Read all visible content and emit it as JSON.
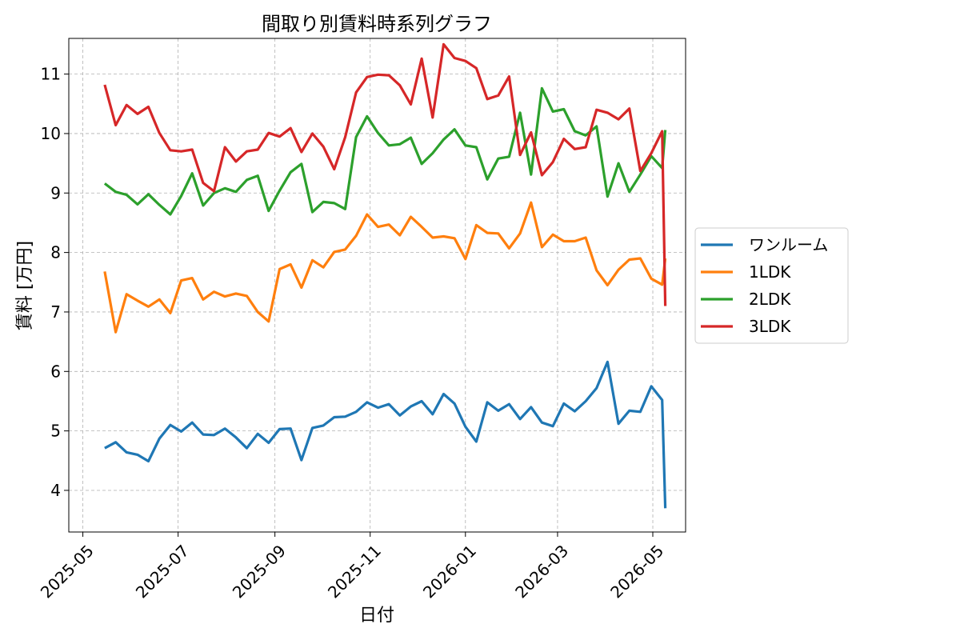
{
  "chart_data": {
    "type": "line",
    "title": "間取り別賃料時系列グラフ",
    "xlabel": "日付",
    "ylabel": "賃料 [万円]",
    "x_tick_labels": [
      "2025-05",
      "2025-07",
      "2025-09",
      "2025-11",
      "2026-01",
      "2026-03",
      "2026-05"
    ],
    "y_tick_labels": [
      "4",
      "5",
      "6",
      "7",
      "8",
      "9",
      "10",
      "11"
    ],
    "ylim": [
      3.3,
      11.6
    ],
    "grid": true,
    "legend_position": "outside-right",
    "x": [
      "2025-05-15",
      "2025-05-22",
      "2025-05-29",
      "2025-06-05",
      "2025-06-12",
      "2025-06-19",
      "2025-06-26",
      "2025-07-03",
      "2025-07-10",
      "2025-07-17",
      "2025-07-24",
      "2025-07-31",
      "2025-08-07",
      "2025-08-14",
      "2025-08-21",
      "2025-08-28",
      "2025-09-04",
      "2025-09-11",
      "2025-09-18",
      "2025-09-25",
      "2025-10-02",
      "2025-10-09",
      "2025-10-16",
      "2025-10-23",
      "2025-10-30",
      "2025-11-06",
      "2025-11-13",
      "2025-11-20",
      "2025-11-27",
      "2025-12-04",
      "2025-12-11",
      "2025-12-18",
      "2025-12-25",
      "2026-01-01",
      "2026-01-08",
      "2026-01-15",
      "2026-01-22",
      "2026-01-29",
      "2026-02-05",
      "2026-02-12",
      "2026-02-19",
      "2026-02-26",
      "2026-03-05",
      "2026-03-12",
      "2026-03-19",
      "2026-03-26",
      "2026-04-02",
      "2026-04-09",
      "2026-04-16",
      "2026-04-23",
      "2026-04-30",
      "2026-05-07",
      "2026-05-09"
    ],
    "series": [
      {
        "name": "ワンルーム",
        "color": "#1f77b4",
        "values": [
          4.71,
          4.81,
          4.64,
          4.6,
          4.49,
          4.87,
          5.1,
          4.99,
          5.14,
          4.94,
          4.93,
          5.04,
          4.89,
          4.71,
          4.95,
          4.8,
          5.03,
          5.04,
          4.51,
          5.05,
          5.09,
          5.23,
          5.24,
          5.32,
          5.48,
          5.39,
          5.45,
          5.26,
          5.41,
          5.5,
          5.28,
          5.62,
          5.46,
          5.07,
          4.82,
          5.48,
          5.34,
          5.45,
          5.2,
          5.4,
          5.14,
          5.08,
          5.46,
          5.33,
          5.5,
          5.72,
          6.16,
          5.12,
          5.34,
          5.32,
          5.75,
          5.52,
          3.7
        ]
      },
      {
        "name": "1LDK",
        "color": "#ff7f0e",
        "values": [
          7.68,
          6.66,
          7.3,
          7.19,
          7.09,
          7.21,
          6.98,
          7.53,
          7.57,
          7.21,
          7.34,
          7.26,
          7.31,
          7.27,
          7.0,
          6.84,
          7.72,
          7.8,
          7.41,
          7.87,
          7.75,
          8.01,
          8.05,
          8.28,
          8.64,
          8.43,
          8.47,
          8.29,
          8.6,
          8.43,
          8.25,
          8.27,
          8.24,
          7.89,
          8.46,
          8.33,
          8.32,
          8.07,
          8.32,
          8.84,
          8.09,
          8.3,
          8.19,
          8.19,
          8.25,
          7.7,
          7.45,
          7.71,
          7.88,
          7.9,
          7.56,
          7.46,
          7.9
        ]
      },
      {
        "name": "2LDK",
        "color": "#2ca02c",
        "values": [
          9.16,
          9.02,
          8.97,
          8.81,
          8.98,
          8.8,
          8.64,
          8.95,
          9.33,
          8.79,
          9.0,
          9.08,
          9.02,
          9.22,
          9.29,
          8.7,
          9.04,
          9.35,
          9.49,
          8.68,
          8.85,
          8.83,
          8.73,
          9.94,
          10.29,
          10.01,
          9.8,
          9.82,
          9.93,
          9.49,
          9.67,
          9.9,
          10.07,
          9.8,
          9.77,
          9.23,
          9.58,
          9.61,
          10.35,
          9.31,
          10.76,
          10.37,
          10.41,
          10.04,
          9.97,
          10.12,
          8.94,
          9.5,
          9.02,
          9.31,
          9.62,
          9.42,
          10.06
        ]
      },
      {
        "name": "3LDK",
        "color": "#d62728",
        "values": [
          10.82,
          10.14,
          10.48,
          10.33,
          10.45,
          10.01,
          9.72,
          9.7,
          9.73,
          9.17,
          9.03,
          9.77,
          9.53,
          9.7,
          9.73,
          10.01,
          9.95,
          10.09,
          9.69,
          10.0,
          9.78,
          9.4,
          9.94,
          10.69,
          10.95,
          10.99,
          10.98,
          10.81,
          10.49,
          11.26,
          10.27,
          11.5,
          11.27,
          11.22,
          11.1,
          10.58,
          10.64,
          10.96,
          9.64,
          10.02,
          9.3,
          9.52,
          9.91,
          9.74,
          9.77,
          10.4,
          10.35,
          10.24,
          10.42,
          9.37,
          9.67,
          10.04,
          7.1
        ]
      }
    ]
  }
}
